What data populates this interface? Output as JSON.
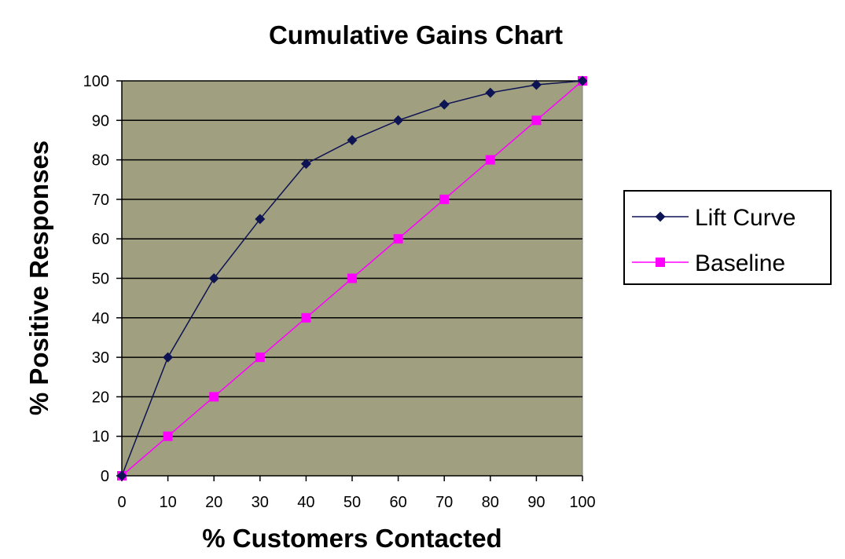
{
  "chart_data": {
    "type": "line",
    "title": "Cumulative Gains Chart",
    "xlabel": "% Customers Contacted",
    "ylabel": "% Positive Responses",
    "x": [
      0,
      10,
      20,
      30,
      40,
      50,
      60,
      70,
      80,
      90,
      100
    ],
    "xlim": [
      0,
      100
    ],
    "ylim": [
      0,
      100
    ],
    "xticks": [
      "0",
      "10",
      "20",
      "30",
      "40",
      "50",
      "60",
      "70",
      "80",
      "90",
      "100"
    ],
    "yticks": [
      "0",
      "10",
      "20",
      "30",
      "40",
      "50",
      "60",
      "70",
      "80",
      "90",
      "100"
    ],
    "grid": "horizontal",
    "legend_position": "right",
    "plot_background": "#a09f7f",
    "series": [
      {
        "name": "Lift Curve",
        "values": [
          0,
          30,
          50,
          65,
          79,
          85,
          90,
          94,
          97,
          99,
          100
        ],
        "color": "#0d1353",
        "marker": "diamond"
      },
      {
        "name": "Baseline",
        "values": [
          0,
          10,
          20,
          30,
          40,
          50,
          60,
          70,
          80,
          90,
          100
        ],
        "color": "#ff00ff",
        "marker": "square"
      }
    ]
  }
}
